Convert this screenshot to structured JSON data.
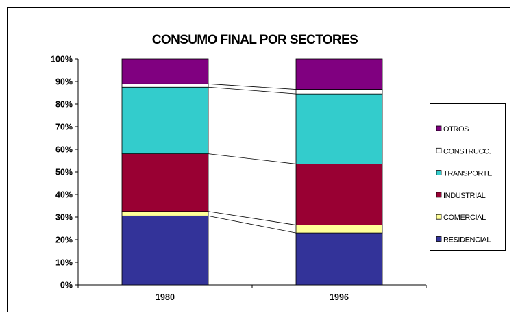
{
  "chart_data": {
    "type": "bar",
    "stacked": "percent",
    "title": "CONSUMO FINAL POR SECTORES",
    "xlabel": "",
    "ylabel": "",
    "ylim": [
      0,
      100
    ],
    "y_ticks": [
      "0%",
      "10%",
      "20%",
      "30%",
      "40%",
      "50%",
      "60%",
      "70%",
      "80%",
      "90%",
      "100%"
    ],
    "categories": [
      "1980",
      "1996"
    ],
    "series": [
      {
        "name": "RESIDENCIAL",
        "color": "#333399",
        "values": [
          30.5,
          23
        ]
      },
      {
        "name": "COMERCIAL",
        "color": "#ffff99",
        "values": [
          2,
          3.5
        ]
      },
      {
        "name": "INDUSTRIAL",
        "color": "#990033",
        "values": [
          25.5,
          27
        ]
      },
      {
        "name": "TRANSPORTE",
        "color": "#33cccc",
        "values": [
          29.5,
          31
        ]
      },
      {
        "name": "CONSTRUCC.",
        "color": "#ffffff",
        "values": [
          1.5,
          2
        ]
      },
      {
        "name": "OTROS",
        "color": "#800080",
        "values": [
          11,
          13.5
        ]
      }
    ],
    "legend_position": "right",
    "series_lines": true,
    "grid": false
  }
}
